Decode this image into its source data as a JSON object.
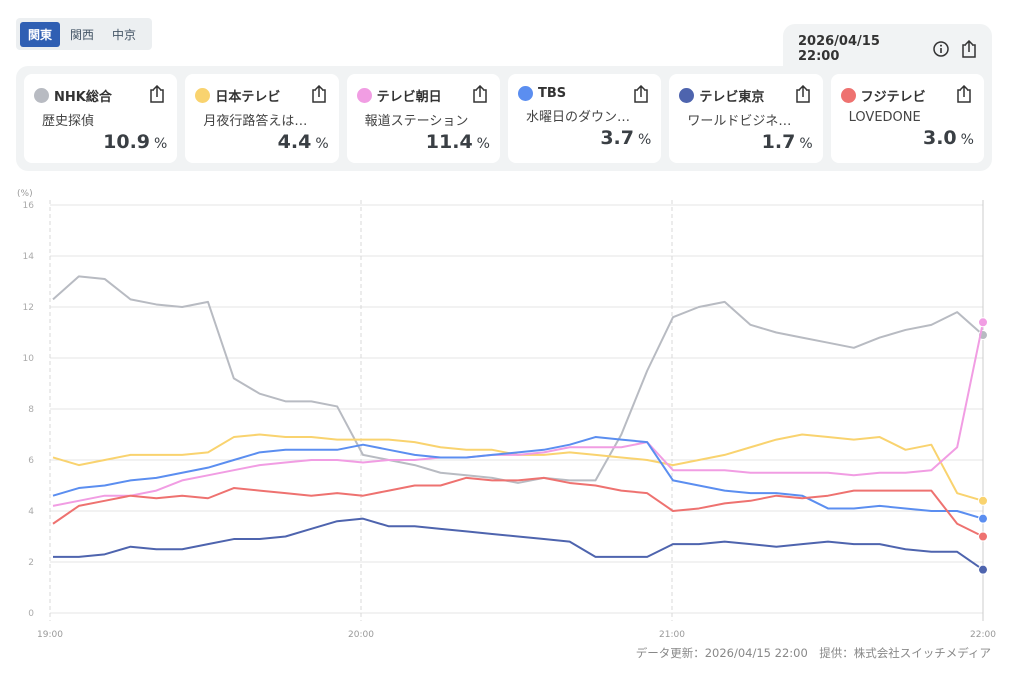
{
  "regions": [
    {
      "label": "関東",
      "active": true
    },
    {
      "label": "関西",
      "active": false
    },
    {
      "label": "中京",
      "active": false
    }
  ],
  "timestamp": "2026/04/15 22:00",
  "stations": [
    {
      "name": "NHK総合",
      "program": "歴史探偵",
      "rating": "10.9",
      "unit": "%",
      "color": "#b8bbc2"
    },
    {
      "name": "日本テレビ",
      "program": "月夜行路答えは…",
      "rating": "4.4",
      "unit": "%",
      "color": "#f9d36f"
    },
    {
      "name": "テレビ朝日",
      "program": "報道ステーション",
      "rating": "11.4",
      "unit": "%",
      "color": "#f19de3"
    },
    {
      "name": "TBS",
      "program": "水曜日のダウン…",
      "rating": "3.7",
      "unit": "%",
      "color": "#5b8ef0"
    },
    {
      "name": "テレビ東京",
      "program": "ワールドビジネ…",
      "rating": "1.7",
      "unit": "%",
      "color": "#4e64ae"
    },
    {
      "name": "フジテレビ",
      "program": "LOVEDONE",
      "rating": "3.0",
      "unit": "%",
      "color": "#ee7270"
    }
  ],
  "footer": "データ更新：2026/04/15 22:00　提供：株式会社スイッチメディア",
  "chart_data": {
    "type": "line",
    "ylabel": "(%)",
    "ylim": [
      0,
      16
    ],
    "yticks": [
      "0",
      "2",
      "4",
      "6",
      "8",
      "10",
      "12",
      "14",
      "16"
    ],
    "xticks": [
      "19:00",
      "20:00",
      "21:00",
      "22:00"
    ],
    "x_interval_minutes": 5,
    "x_start": "19:00",
    "x_end": "22:00",
    "series": [
      {
        "name": "NHK総合",
        "color": "#b8bbc2",
        "values": [
          12.3,
          13.2,
          13.1,
          12.3,
          12.1,
          12.0,
          12.2,
          9.2,
          8.6,
          8.3,
          8.3,
          8.1,
          6.2,
          6.0,
          5.8,
          5.5,
          5.4,
          5.3,
          5.1,
          5.3,
          5.2,
          5.2,
          7.0,
          9.5,
          11.6,
          12.0,
          12.2,
          11.3,
          11.0,
          10.8,
          10.6,
          10.4,
          10.8,
          11.1,
          11.3,
          11.8,
          10.9
        ]
      },
      {
        "name": "日本テレビ",
        "color": "#f9d36f",
        "values": [
          6.1,
          5.8,
          6.0,
          6.2,
          6.2,
          6.2,
          6.3,
          6.9,
          7.0,
          6.9,
          6.9,
          6.8,
          6.8,
          6.8,
          6.7,
          6.5,
          6.4,
          6.4,
          6.2,
          6.2,
          6.3,
          6.2,
          6.1,
          6.0,
          5.8,
          6.0,
          6.2,
          6.5,
          6.8,
          7.0,
          6.9,
          6.8,
          6.9,
          6.4,
          6.6,
          4.7,
          4.4
        ]
      },
      {
        "name": "テレビ朝日",
        "color": "#f19de3",
        "values": [
          4.2,
          4.4,
          4.6,
          4.6,
          4.8,
          5.2,
          5.4,
          5.6,
          5.8,
          5.9,
          6.0,
          6.0,
          5.9,
          6.0,
          6.0,
          6.1,
          6.1,
          6.2,
          6.2,
          6.3,
          6.5,
          6.5,
          6.5,
          6.7,
          5.6,
          5.6,
          5.6,
          5.5,
          5.5,
          5.5,
          5.5,
          5.4,
          5.5,
          5.5,
          5.6,
          6.5,
          11.4
        ]
      },
      {
        "name": "TBS",
        "color": "#5b8ef0",
        "values": [
          4.6,
          4.9,
          5.0,
          5.2,
          5.3,
          5.5,
          5.7,
          6.0,
          6.3,
          6.4,
          6.4,
          6.4,
          6.6,
          6.4,
          6.2,
          6.1,
          6.1,
          6.2,
          6.3,
          6.4,
          6.6,
          6.9,
          6.8,
          6.7,
          5.2,
          5.0,
          4.8,
          4.7,
          4.7,
          4.6,
          4.1,
          4.1,
          4.2,
          4.1,
          4.0,
          4.0,
          3.7
        ]
      },
      {
        "name": "テレビ東京",
        "color": "#4e64ae",
        "values": [
          2.2,
          2.2,
          2.3,
          2.6,
          2.5,
          2.5,
          2.7,
          2.9,
          2.9,
          3.0,
          3.3,
          3.6,
          3.7,
          3.4,
          3.4,
          3.3,
          3.2,
          3.1,
          3.0,
          2.9,
          2.8,
          2.2,
          2.2,
          2.2,
          2.7,
          2.7,
          2.8,
          2.7,
          2.6,
          2.7,
          2.8,
          2.7,
          2.7,
          2.5,
          2.4,
          2.4,
          1.7
        ]
      },
      {
        "name": "フジテレビ",
        "color": "#ee7270",
        "values": [
          3.5,
          4.2,
          4.4,
          4.6,
          4.5,
          4.6,
          4.5,
          4.9,
          4.8,
          4.7,
          4.6,
          4.7,
          4.6,
          4.8,
          5.0,
          5.0,
          5.3,
          5.2,
          5.2,
          5.3,
          5.1,
          5.0,
          4.8,
          4.7,
          4.0,
          4.1,
          4.3,
          4.4,
          4.6,
          4.5,
          4.6,
          4.8,
          4.8,
          4.8,
          4.8,
          3.5,
          3.0
        ]
      }
    ]
  }
}
